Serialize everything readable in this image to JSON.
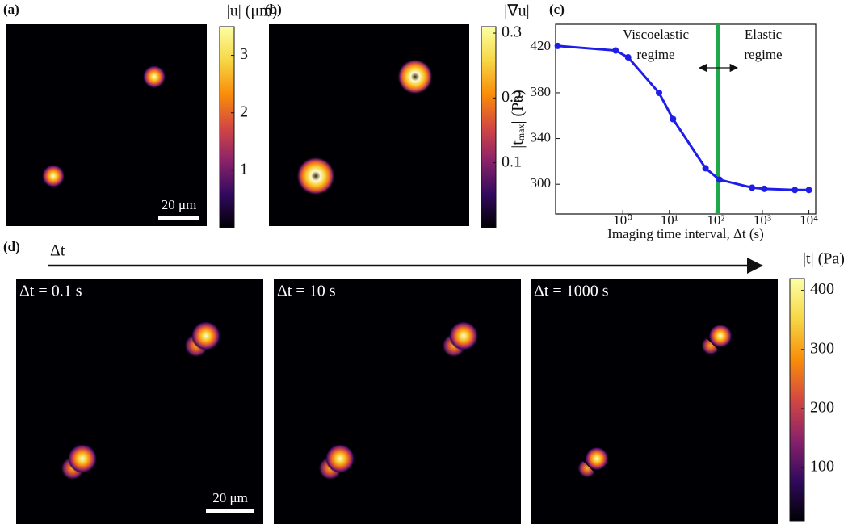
{
  "chart_data": [
    {
      "type": "image",
      "panel": "(a)",
      "colorbar": {
        "label": "|u| (μm)",
        "lim": [
          0,
          3.5
        ],
        "ticks": [
          1,
          2,
          3
        ]
      },
      "scale_bar": "20 μm",
      "colormap": [
        "#000004",
        "#320a5e",
        "#8a226a",
        "#d44842",
        "#f98e09",
        "#f6d746",
        "#fcffa4"
      ]
    },
    {
      "type": "image",
      "panel": "(b)",
      "colorbar": {
        "label": "|∇u|",
        "lim": [
          0,
          0.31
        ],
        "ticks": [
          0.1,
          0.2,
          0.3
        ]
      },
      "colormap": [
        "#000004",
        "#320a5e",
        "#8a226a",
        "#d44842",
        "#f98e09",
        "#f6d746",
        "#fcffa4"
      ]
    },
    {
      "type": "line",
      "panel": "(c)",
      "xlabel": "Imaging time interval, Δt (s)",
      "ylabel": [
        "|t",
        "max",
        "| (Pa)"
      ],
      "xscale": "log",
      "xlim": [
        0.036,
        14000
      ],
      "ylim": [
        274,
        440
      ],
      "xticks": [
        {
          "value": 1,
          "label": "10⁰"
        },
        {
          "value": 10,
          "label": "10¹"
        },
        {
          "value": 100,
          "label": "10²"
        },
        {
          "value": 1000,
          "label": "10³"
        },
        {
          "value": 10000,
          "label": "10⁴"
        }
      ],
      "yticks": [
        300,
        340,
        380,
        420
      ],
      "x": [
        0.04,
        0.7,
        1.3,
        6,
        12,
        60,
        120,
        600,
        1100,
        5000,
        10000
      ],
      "series": [
        {
          "color": "#1e1ee8",
          "values": [
            421,
            417,
            411,
            380,
            357,
            314,
            304,
            297,
            296,
            295,
            295
          ]
        }
      ],
      "vline": {
        "x": 110,
        "color": "#1ea84a"
      },
      "annotations": [
        "Viscoelastic",
        "regime",
        "Elastic",
        "regime"
      ]
    },
    {
      "type": "image-sequence",
      "panel": "(d)",
      "arrow_label": "Δt",
      "frames": [
        "Δt = 0.1 s",
        "Δt = 10 s",
        "Δt = 1000 s"
      ],
      "scale_bar": "20 μm",
      "colorbar": {
        "label": "|t| (Pa)",
        "lim": [
          10,
          420
        ],
        "ticks": [
          100,
          200,
          300,
          400
        ]
      },
      "colormap": [
        "#000004",
        "#320a5e",
        "#8a226a",
        "#d44842",
        "#f98e09",
        "#f6d746",
        "#fcffa4"
      ]
    }
  ]
}
